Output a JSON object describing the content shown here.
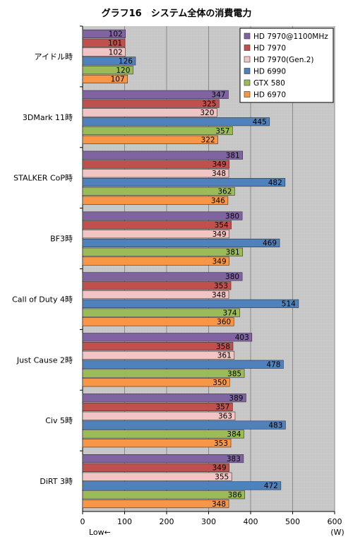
{
  "chart_data": {
    "type": "bar",
    "orientation": "horizontal",
    "title": "グラフ16　システム全体の消費電力",
    "xlabel": "",
    "ylabel": "",
    "unit_label": "(W)",
    "low_label": "Low←",
    "xlim": [
      0,
      600
    ],
    "x_ticks": [
      0,
      100,
      200,
      300,
      400,
      500,
      600
    ],
    "grid": true,
    "legend_position": "top-right",
    "categories": [
      "アイドル時",
      "3DMark 11時",
      "STALKER  CoP時",
      "BF3時",
      "Call of Duty 4時",
      "Just Cause 2時",
      "Civ 5時",
      "DiRT 3時"
    ],
    "series": [
      {
        "name": "HD 7970@1100MHz",
        "color": "#8064a2",
        "values": [
          102,
          347,
          381,
          380,
          380,
          403,
          389,
          383
        ]
      },
      {
        "name": "HD 7970",
        "color": "#c0504d",
        "values": [
          101,
          325,
          349,
          354,
          353,
          358,
          357,
          349
        ]
      },
      {
        "name": "HD 7970(Gen.2)",
        "color": "#f2c4c4",
        "values": [
          102,
          320,
          348,
          349,
          348,
          361,
          363,
          355
        ]
      },
      {
        "name": "HD 6990",
        "color": "#4f81bd",
        "values": [
          126,
          445,
          482,
          469,
          514,
          478,
          483,
          472
        ]
      },
      {
        "name": "GTX 580",
        "color": "#9bbb59",
        "values": [
          120,
          357,
          362,
          381,
          374,
          385,
          384,
          386
        ]
      },
      {
        "name": "HD 6970",
        "color": "#f79646",
        "values": [
          107,
          322,
          346,
          349,
          360,
          350,
          353,
          348
        ]
      }
    ]
  }
}
